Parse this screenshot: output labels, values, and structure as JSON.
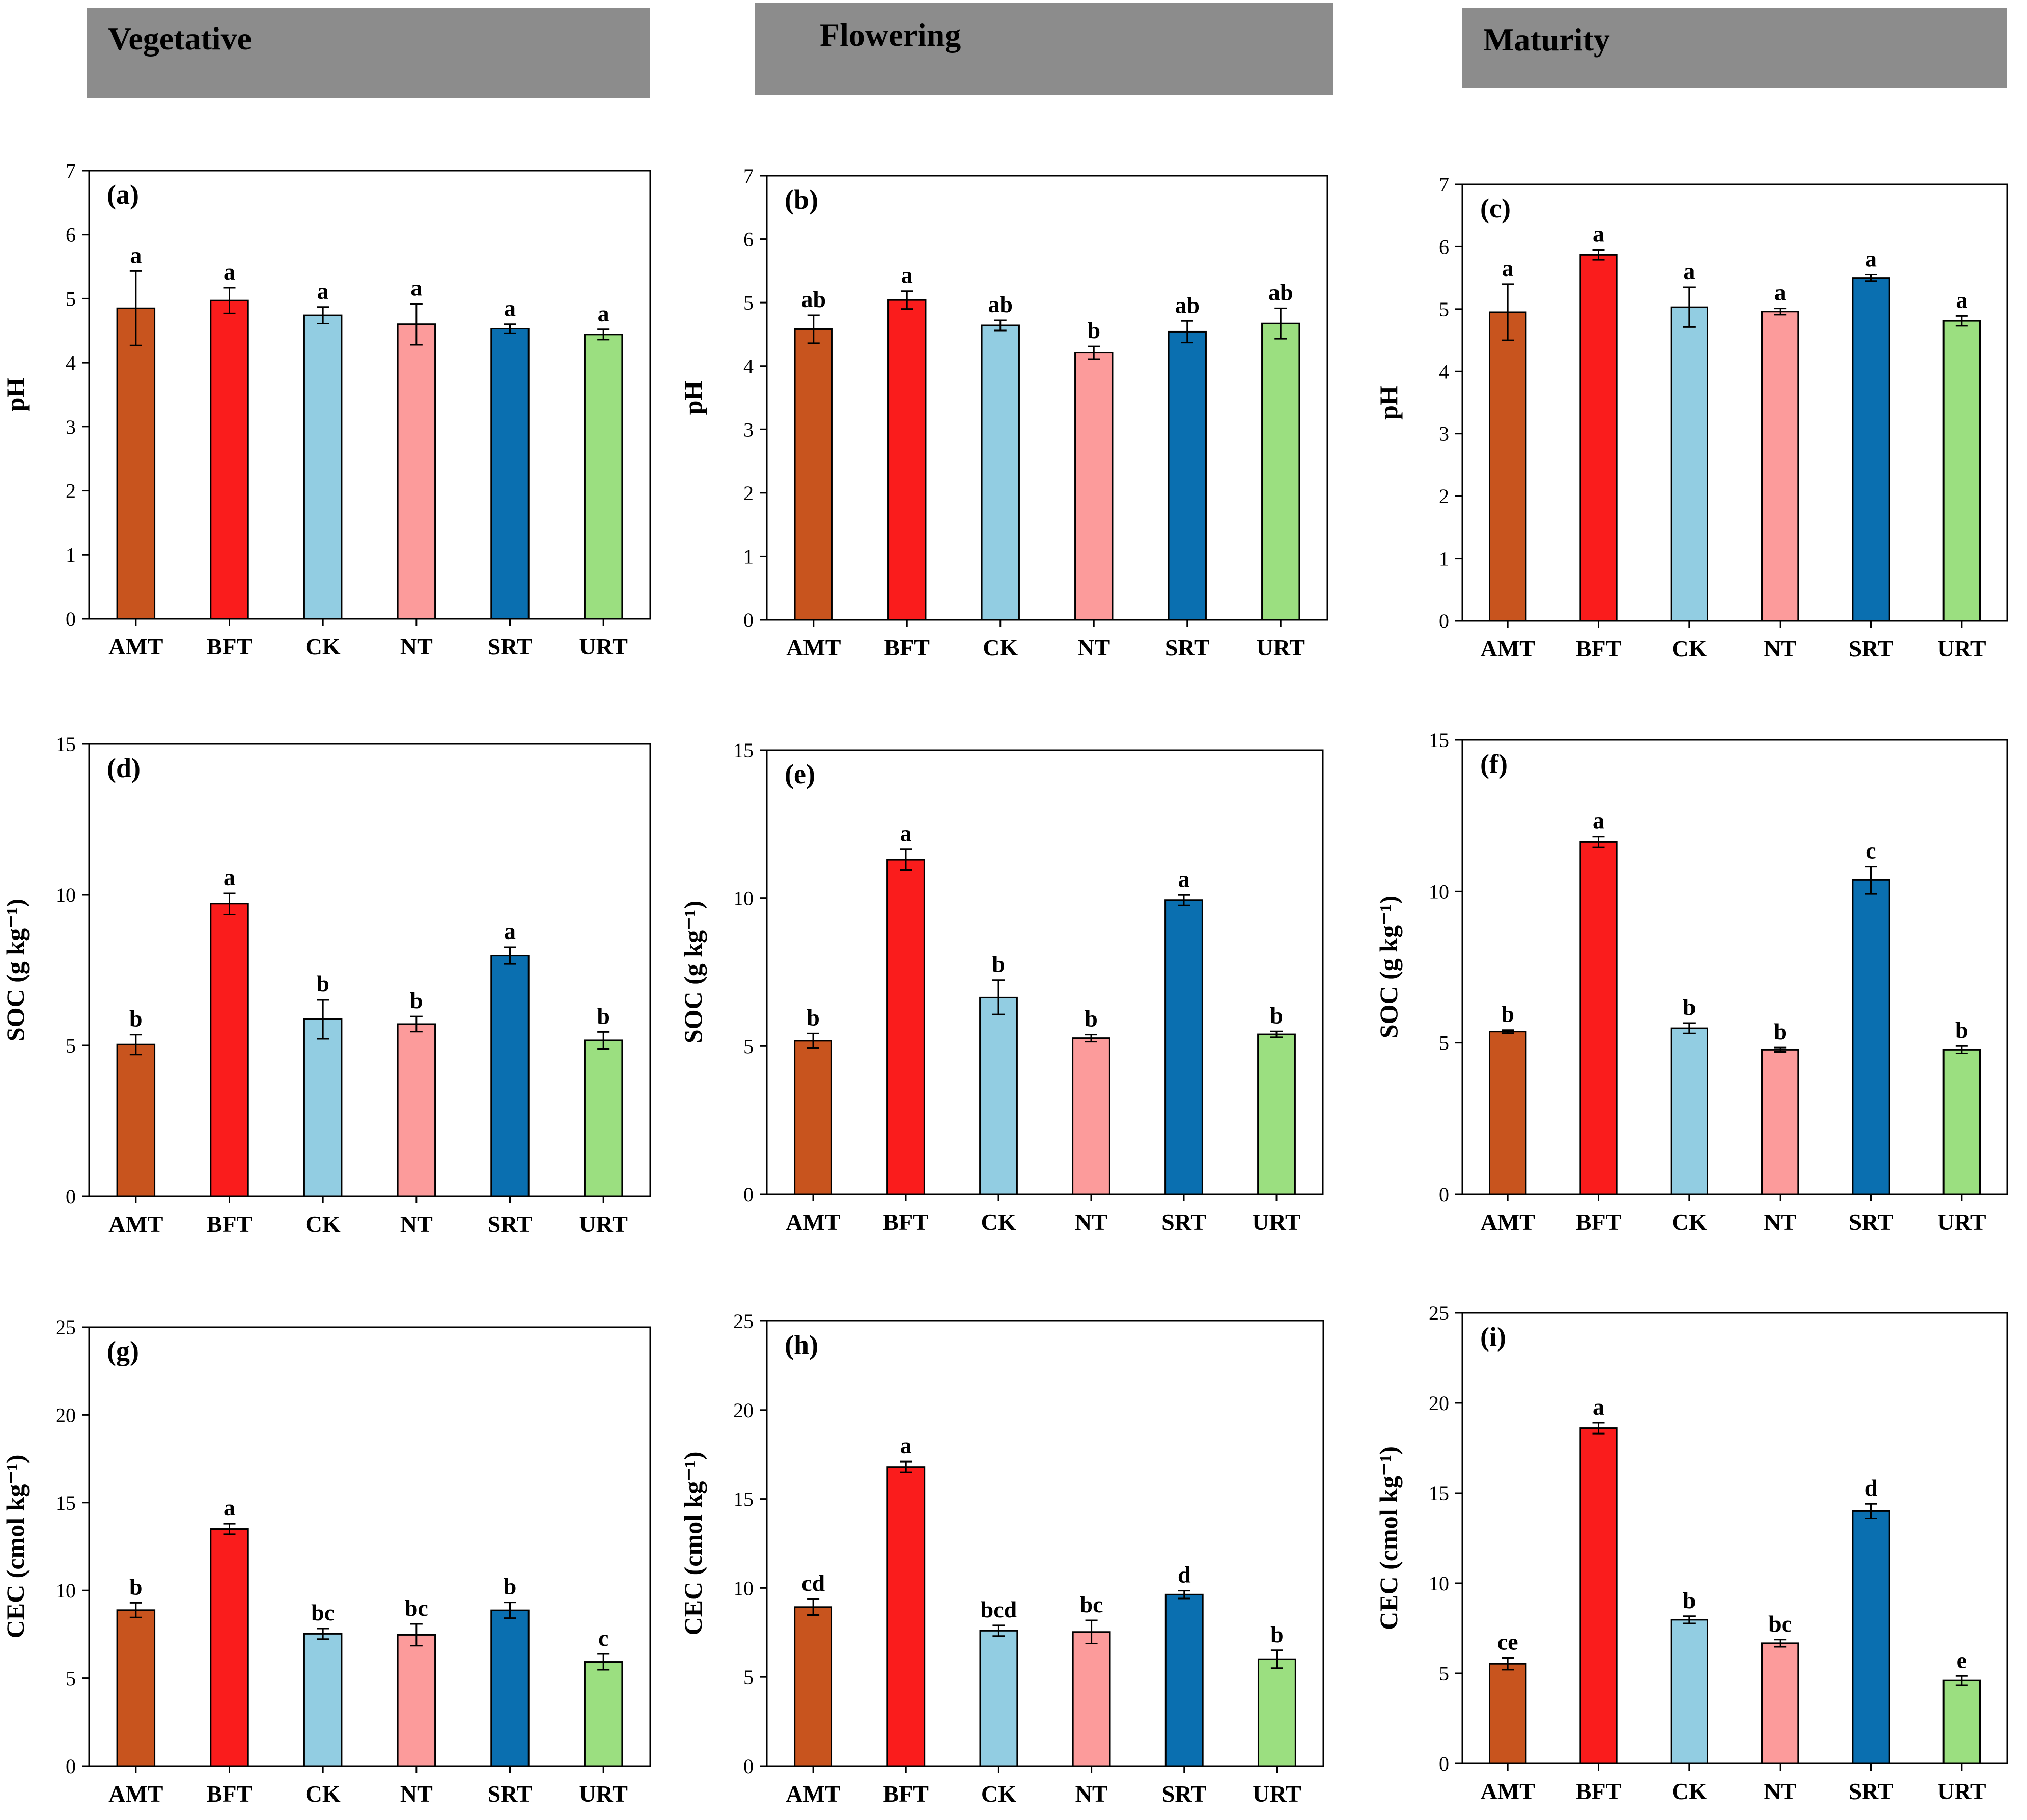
{
  "stages": [
    "Vegetative",
    "Flowering",
    "Maturity"
  ],
  "categories": [
    "AMT",
    "BFT",
    "CK",
    "NT",
    "SRT",
    "URT"
  ],
  "colors": {
    "AMT": "#c8541e",
    "BFT": "#fa1c1c",
    "CK": "#92cde2",
    "NT": "#fc9b9b",
    "SRT": "#0a6fb0",
    "URT": "#9bdf80"
  },
  "chart_data": [
    {
      "panel": "(a)",
      "stage": "Vegetative",
      "type": "bar",
      "ylabel": "pH",
      "ylim": [
        0,
        7
      ],
      "yticks": [
        0,
        1,
        2,
        3,
        4,
        5,
        6,
        7
      ],
      "values": [
        4.85,
        4.97,
        4.74,
        4.6,
        4.53,
        4.44
      ],
      "errors": [
        0.58,
        0.2,
        0.13,
        0.32,
        0.07,
        0.08
      ],
      "letters": [
        "a",
        "a",
        "a",
        "a",
        "a",
        "a"
      ]
    },
    {
      "panel": "(b)",
      "stage": "Flowering",
      "type": "bar",
      "ylabel": "pH",
      "ylim": [
        0,
        7
      ],
      "yticks": [
        0,
        1,
        2,
        3,
        4,
        5,
        6,
        7
      ],
      "values": [
        4.58,
        5.04,
        4.64,
        4.21,
        4.54,
        4.67
      ],
      "errors": [
        0.22,
        0.14,
        0.08,
        0.1,
        0.17,
        0.24
      ],
      "letters": [
        "ab",
        "a",
        "ab",
        "b",
        "ab",
        "ab"
      ]
    },
    {
      "panel": "(c)",
      "stage": "Maturity",
      "type": "bar",
      "ylabel": "pH",
      "ylim": [
        0,
        7
      ],
      "yticks": [
        0,
        1,
        2,
        3,
        4,
        5,
        6,
        7
      ],
      "values": [
        4.95,
        5.87,
        5.03,
        4.96,
        5.5,
        4.81
      ],
      "errors": [
        0.45,
        0.08,
        0.32,
        0.05,
        0.05,
        0.08
      ],
      "letters": [
        "a",
        "a",
        "a",
        "a",
        "a",
        "a"
      ]
    },
    {
      "panel": "(d)",
      "stage": "Vegetative",
      "type": "bar",
      "ylabel": "SOC (g kg⁻¹)",
      "ylim": [
        0,
        15
      ],
      "yticks": [
        0,
        5,
        10,
        15
      ],
      "values": [
        5.03,
        9.7,
        5.87,
        5.71,
        7.98,
        5.17
      ],
      "errors": [
        0.33,
        0.35,
        0.65,
        0.25,
        0.28,
        0.28
      ],
      "letters": [
        "b",
        "a",
        "b",
        "b",
        "a",
        "b"
      ]
    },
    {
      "panel": "(e)",
      "stage": "Flowering",
      "type": "bar",
      "ylabel": "SOC (g kg⁻¹)",
      "ylim": [
        0,
        15
      ],
      "yticks": [
        0,
        5,
        10,
        15
      ],
      "values": [
        5.18,
        11.3,
        6.65,
        5.27,
        9.93,
        5.4
      ],
      "errors": [
        0.25,
        0.35,
        0.58,
        0.12,
        0.18,
        0.1
      ],
      "letters": [
        "b",
        "a",
        "b",
        "b",
        "a",
        "b"
      ]
    },
    {
      "panel": "(f)",
      "stage": "Maturity",
      "type": "bar",
      "ylabel": "SOC (g kg⁻¹)",
      "ylim": [
        0,
        15
      ],
      "yticks": [
        0,
        5,
        10,
        15
      ],
      "values": [
        5.37,
        11.63,
        5.48,
        4.77,
        10.37,
        4.77
      ],
      "errors": [
        0.05,
        0.18,
        0.17,
        0.07,
        0.45,
        0.12
      ],
      "letters": [
        "b",
        "a",
        "b",
        "b",
        "c",
        "b"
      ]
    },
    {
      "panel": "(g)",
      "stage": "Vegetative",
      "type": "bar",
      "ylabel": "CEC (cmol kg⁻¹)",
      "ylim": [
        0,
        25
      ],
      "yticks": [
        0,
        5,
        10,
        15,
        20,
        25
      ],
      "values": [
        8.88,
        13.5,
        7.53,
        7.47,
        8.87,
        5.93
      ],
      "errors": [
        0.42,
        0.3,
        0.3,
        0.62,
        0.45,
        0.45
      ],
      "letters": [
        "b",
        "a",
        "bc",
        "bc",
        "b",
        "c"
      ]
    },
    {
      "panel": "(h)",
      "stage": "Flowering",
      "type": "bar",
      "ylabel": "CEC (cmol kg⁻¹)",
      "ylim": [
        0,
        25
      ],
      "yticks": [
        0,
        5,
        10,
        15,
        20,
        25
      ],
      "values": [
        8.93,
        16.8,
        7.6,
        7.53,
        9.63,
        6.0
      ],
      "errors": [
        0.45,
        0.3,
        0.3,
        0.65,
        0.22,
        0.5
      ],
      "letters": [
        "cd",
        "a",
        "bcd",
        "bc",
        "d",
        "b"
      ]
    },
    {
      "panel": "(i)",
      "stage": "Maturity",
      "type": "bar",
      "ylabel": "CEC (cmol kg⁻¹)",
      "ylim": [
        0,
        25
      ],
      "yticks": [
        0,
        5,
        10,
        15,
        20,
        25
      ],
      "values": [
        5.53,
        18.6,
        7.97,
        6.67,
        14.0,
        4.6
      ],
      "errors": [
        0.33,
        0.3,
        0.2,
        0.2,
        0.4,
        0.25
      ],
      "letters": [
        "ce",
        "a",
        "b",
        "bc",
        "d",
        "e"
      ]
    }
  ]
}
